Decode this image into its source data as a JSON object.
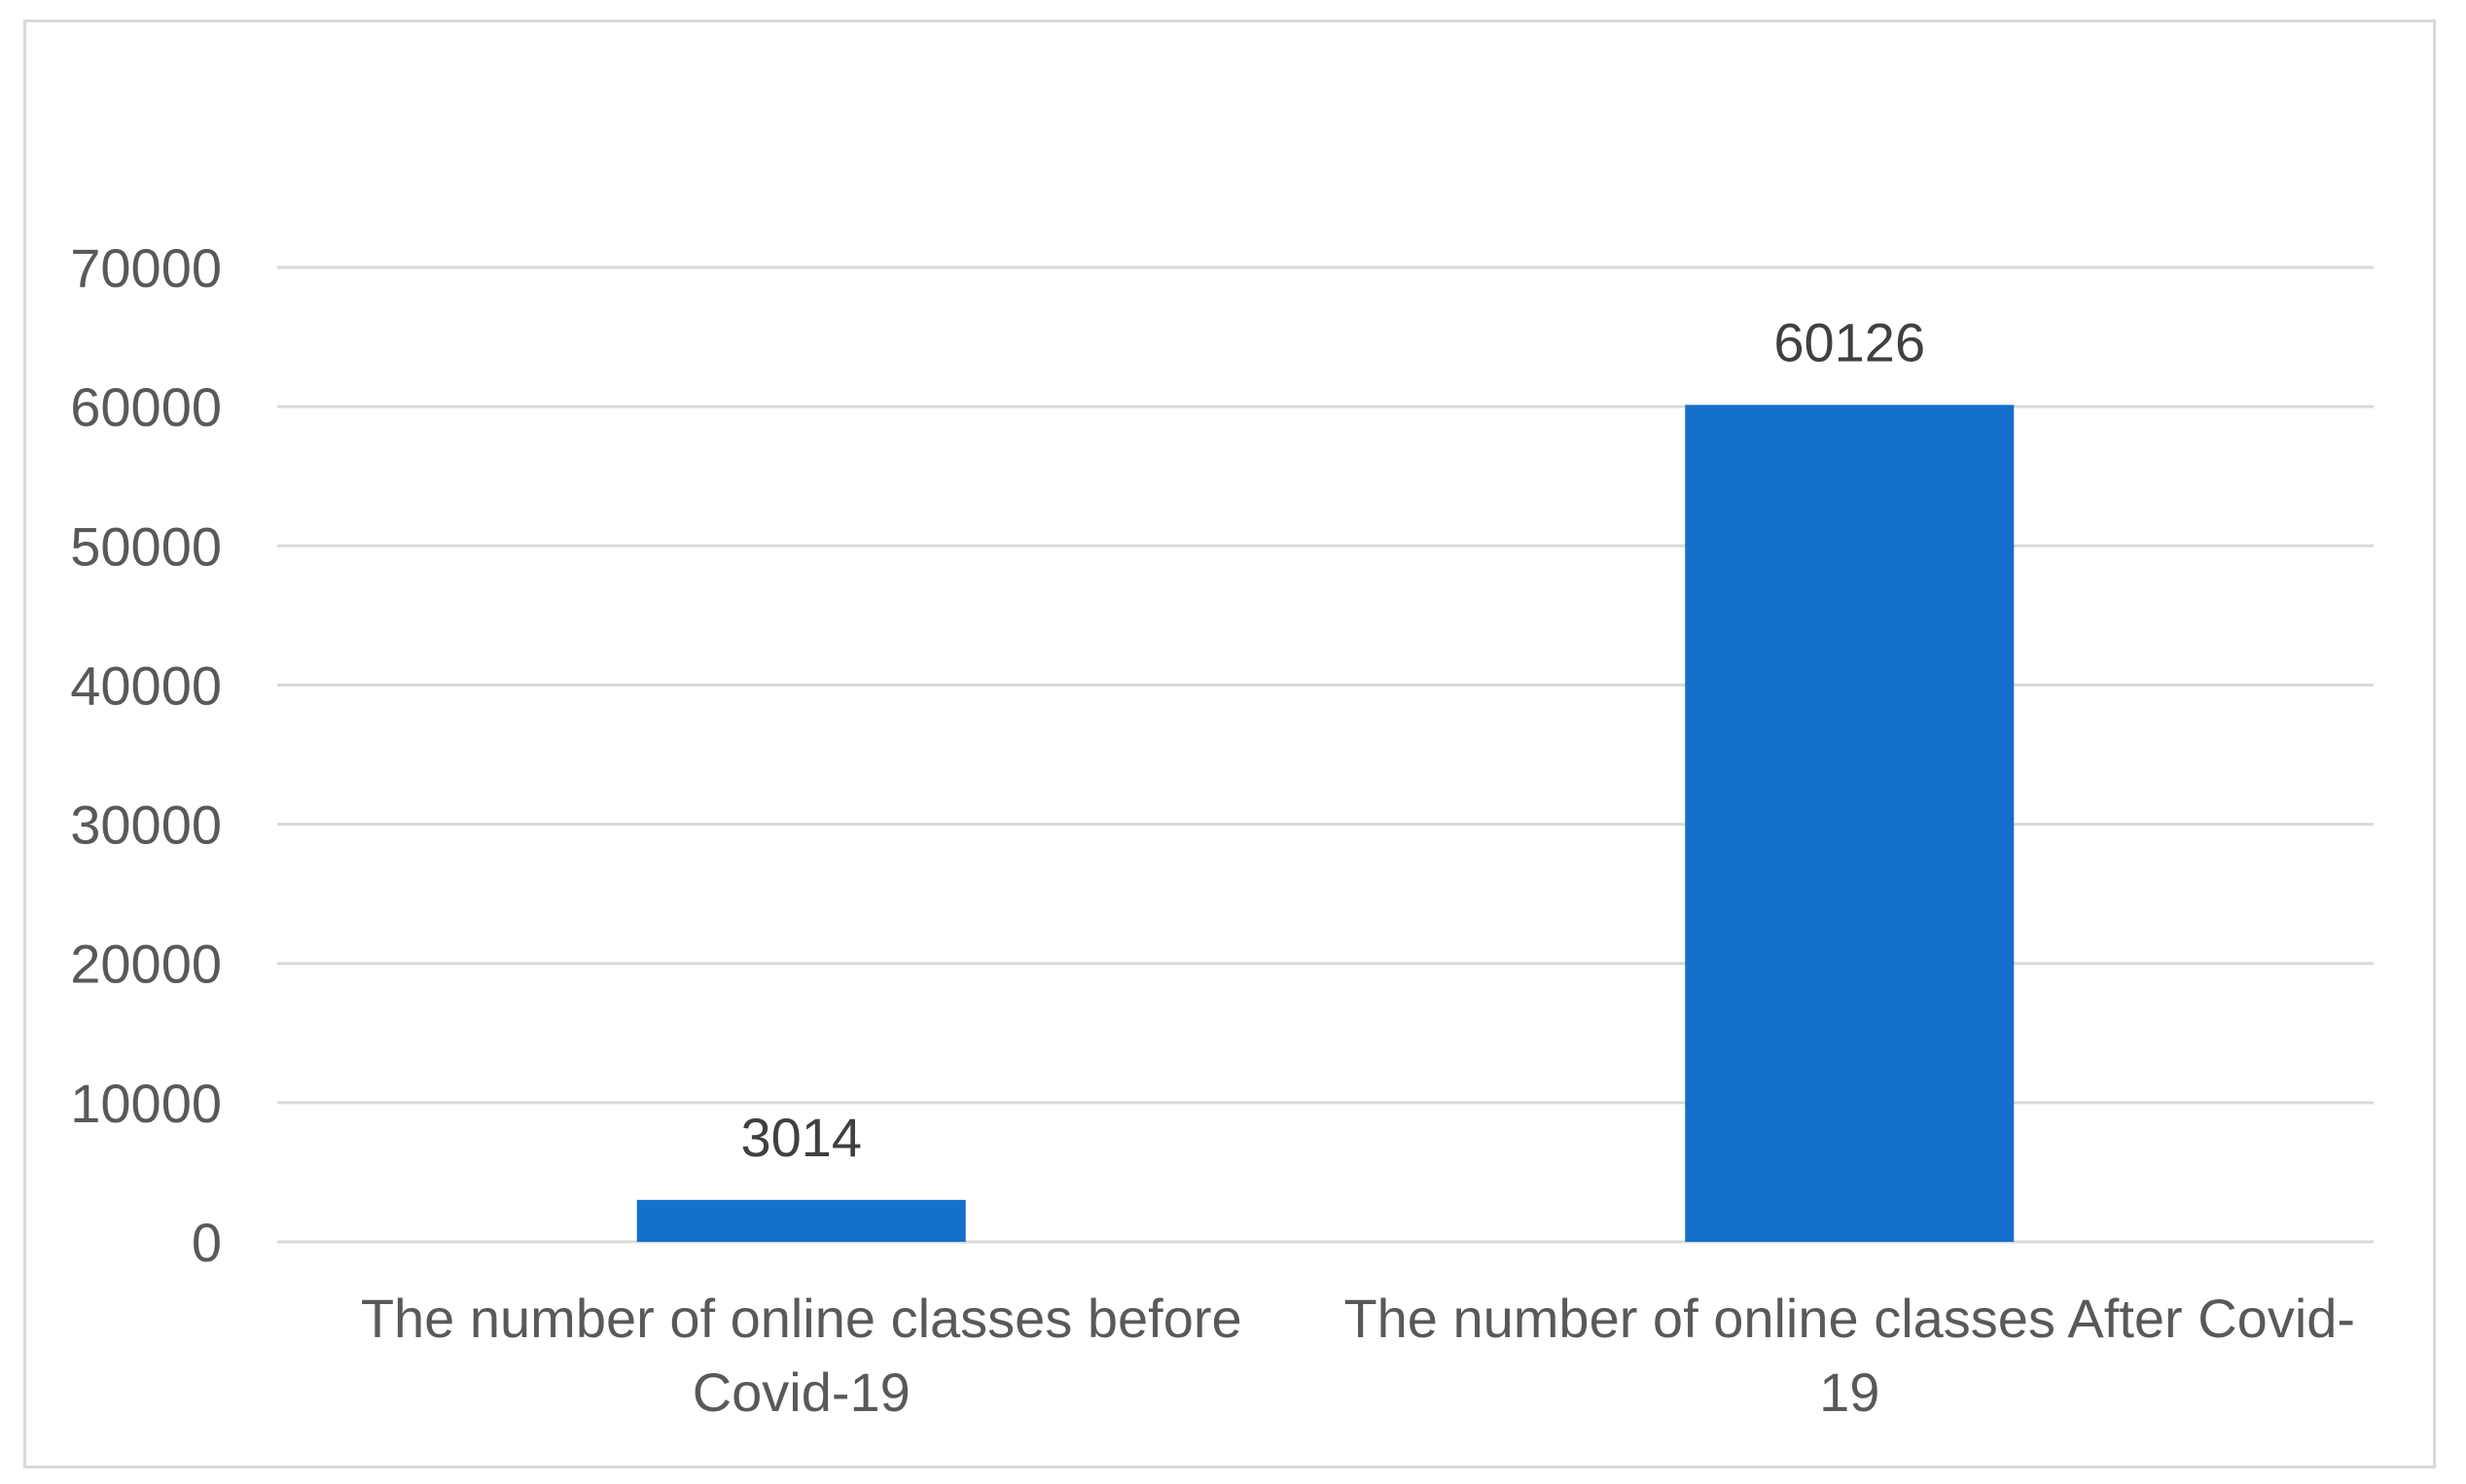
{
  "chart_data": {
    "type": "bar",
    "categories": [
      [
        "The number of online classes before",
        "Covid-19"
      ],
      [
        "The number of online classes After Covid-",
        "19"
      ]
    ],
    "values": [
      3014,
      60126
    ],
    "data_labels": [
      "3014",
      "60126"
    ],
    "yticks": [
      "0",
      "10000",
      "20000",
      "30000",
      "40000",
      "50000",
      "60000",
      "70000"
    ],
    "ylim": [
      0,
      70000
    ],
    "grid": true,
    "legend": "none",
    "title": "",
    "xlabel": "",
    "ylabel": "",
    "bar_color": "#1570cb",
    "grid_color": "#d9d9d9"
  }
}
